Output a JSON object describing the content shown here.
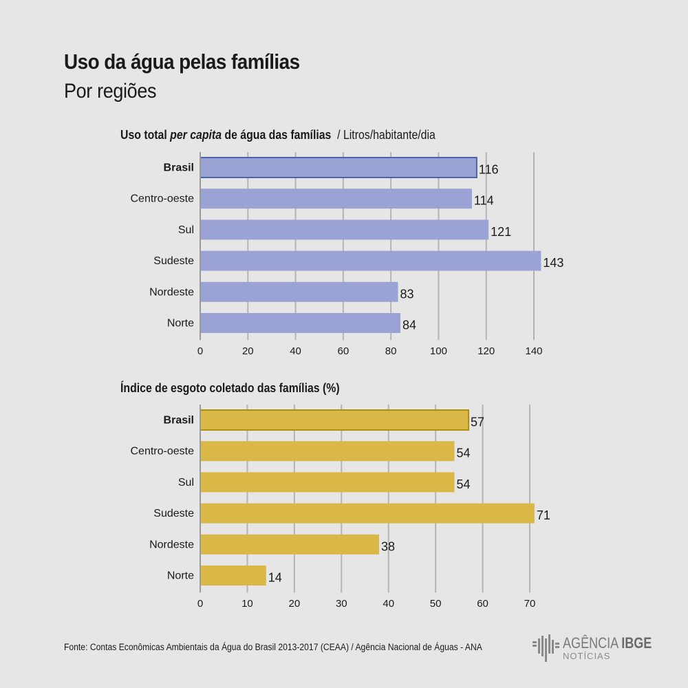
{
  "header": {
    "title": "Uso da água pelas famílias",
    "subtitle": "Por regiões"
  },
  "chart_data": [
    {
      "type": "bar",
      "orientation": "horizontal",
      "title_bold": "Uso total ",
      "title_italic": "per capita",
      "title_bold_rest": " de água das famílias",
      "title_unit": "  / Litros/habitante/dia",
      "categories": [
        "Brasil",
        "Centro-oeste",
        "Sul",
        "Sudeste",
        "Nordeste",
        "Norte"
      ],
      "values": [
        116,
        114,
        121,
        143,
        83,
        84
      ],
      "highlight": "Brasil",
      "xlim": [
        0,
        140
      ],
      "xticks": [
        0,
        20,
        40,
        60,
        80,
        100,
        120,
        140
      ],
      "grid": true,
      "colors": {
        "bar": "#9ba3d4",
        "highlight_stroke": "#4b63a8"
      }
    },
    {
      "type": "bar",
      "orientation": "horizontal",
      "title_bold": "Índice de esgoto coletado das famílias (%)",
      "categories": [
        "Brasil",
        "Centro-oeste",
        "Sul",
        "Sudeste",
        "Nordeste",
        "Norte"
      ],
      "values": [
        57,
        54,
        54,
        71,
        38,
        14
      ],
      "highlight": "Brasil",
      "xlim": [
        0,
        70
      ],
      "xticks": [
        0,
        10,
        20,
        30,
        40,
        50,
        60,
        70
      ],
      "grid": true,
      "colors": {
        "bar": "#dab847",
        "highlight_stroke": "#b08e10"
      }
    }
  ],
  "footer": {
    "source": "Fonte:  Contas Econômicas Ambientais da Água do Brasil 2013-2017 (CEAA) / Agência Nacional de Águas - ANA",
    "logo_word": "AGÊNCIA",
    "logo_brand": "IBGE",
    "logo_sub": "NOTÍCIAS"
  }
}
